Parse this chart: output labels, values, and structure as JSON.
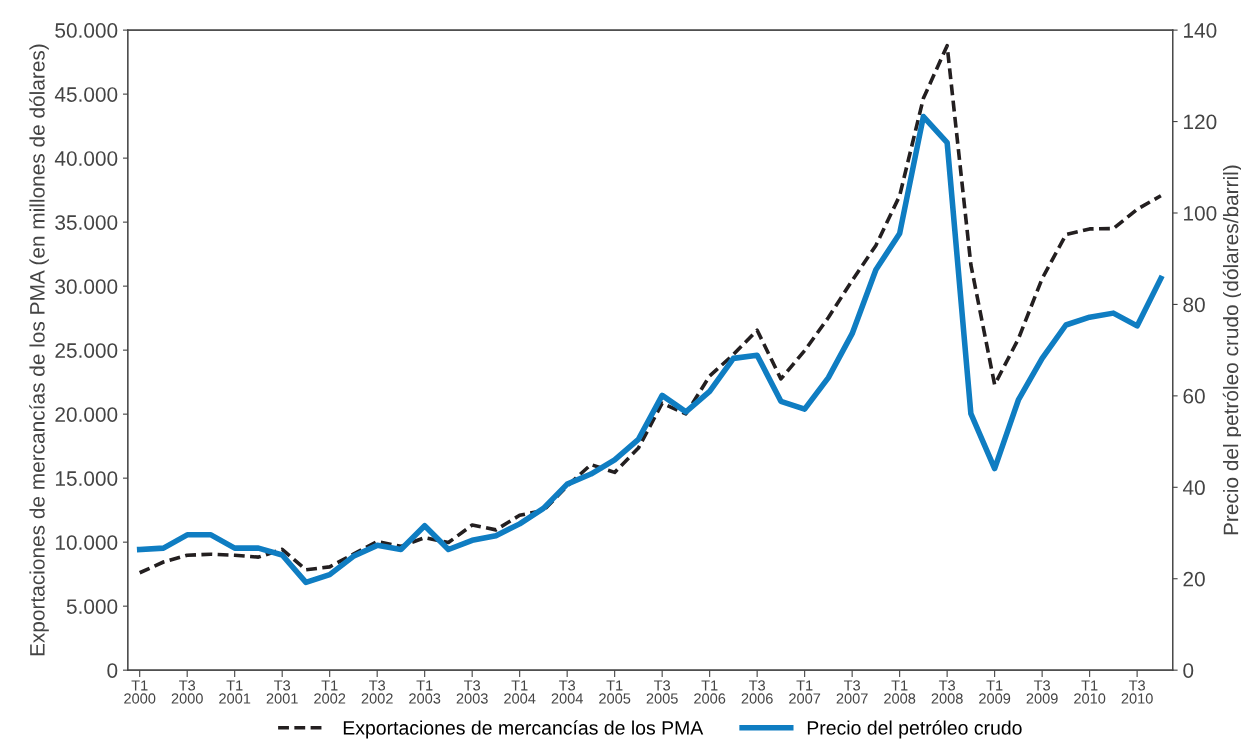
{
  "chart_data": {
    "type": "line",
    "ylabel": "Exportaciones de mercancías de los PMA (en millones de dólares)",
    "y2label": "Precio del petróleo crudo (dólares/barril)",
    "categories": [
      "T1\n2000",
      null,
      "T3\n2000",
      null,
      "T1\n2001",
      null,
      "T3\n2001",
      null,
      "T1\n2002",
      null,
      "T3\n2002",
      null,
      "T1\n2003",
      null,
      "T3\n2003",
      null,
      "T1\n2004",
      null,
      "T3\n2004",
      null,
      "T1\n2005",
      null,
      "T3\n2005",
      null,
      "T1\n2006",
      null,
      "T3\n2006",
      null,
      "T1\n2007",
      null,
      "T3\n2007",
      null,
      "T1\n2008",
      null,
      "T3\n2008",
      null,
      "T1\n2009",
      null,
      "T3\n2009",
      null,
      "T1\n2010",
      null,
      "T3\n2010",
      null
    ],
    "series": [
      {
        "name": "Exportaciones de mercancías de los PMA",
        "color": "#231f20",
        "line_style": "dashed",
        "values": [
          7610,
          8450,
          8980,
          9060,
          8980,
          8830,
          9440,
          7840,
          8070,
          9060,
          10050,
          9670,
          10350,
          9970,
          11340,
          10960,
          12100,
          12480,
          14380,
          16060,
          15450,
          17350,
          20850,
          20020,
          22980,
          24660,
          26560,
          22750,
          24960,
          27550,
          30440,
          33180,
          37060,
          44670,
          48780,
          31660,
          22300,
          25880,
          30590,
          34020,
          34470,
          34500,
          36000,
          37060
        ]
      },
      {
        "name": "Precio del petróleo crudo",
        "color": "#0f7dc2",
        "line_style": "solid",
        "axis": "y2",
        "values": [
          26.4,
          26.7,
          29.6,
          29.6,
          26.7,
          26.7,
          25.2,
          19.2,
          20.9,
          24.9,
          27.3,
          26.4,
          31.6,
          26.4,
          28.4,
          29.4,
          32.0,
          35.4,
          40.7,
          42.9,
          46.0,
          50.5,
          60.1,
          56.5,
          61.0,
          68.2,
          68.9,
          58.8,
          57.1,
          64.0,
          73.6,
          87.6,
          95.5,
          121.1,
          115.4,
          56.1,
          44.1,
          59.1,
          68.2,
          75.5,
          77.2,
          78.1,
          75.3,
          85.7
        ]
      }
    ],
    "ylim": [
      0,
      50000
    ],
    "yticks": [
      {
        "value": 0,
        "label": "0"
      },
      {
        "value": 5000,
        "label": "5.000"
      },
      {
        "value": 10000,
        "label": "10.000"
      },
      {
        "value": 15000,
        "label": "15.000"
      },
      {
        "value": 20000,
        "label": "20.000"
      },
      {
        "value": 25000,
        "label": "25.000"
      },
      {
        "value": 30000,
        "label": "30.000"
      },
      {
        "value": 35000,
        "label": "35.000"
      },
      {
        "value": 40000,
        "label": "40.000"
      },
      {
        "value": 45000,
        "label": "45.000"
      },
      {
        "value": 50000,
        "label": "50.000"
      }
    ],
    "y2lim": [
      0,
      140
    ],
    "y2ticks": [
      0,
      20,
      40,
      60,
      80,
      100,
      120,
      140
    ],
    "grid": false,
    "legend": "bottom"
  }
}
